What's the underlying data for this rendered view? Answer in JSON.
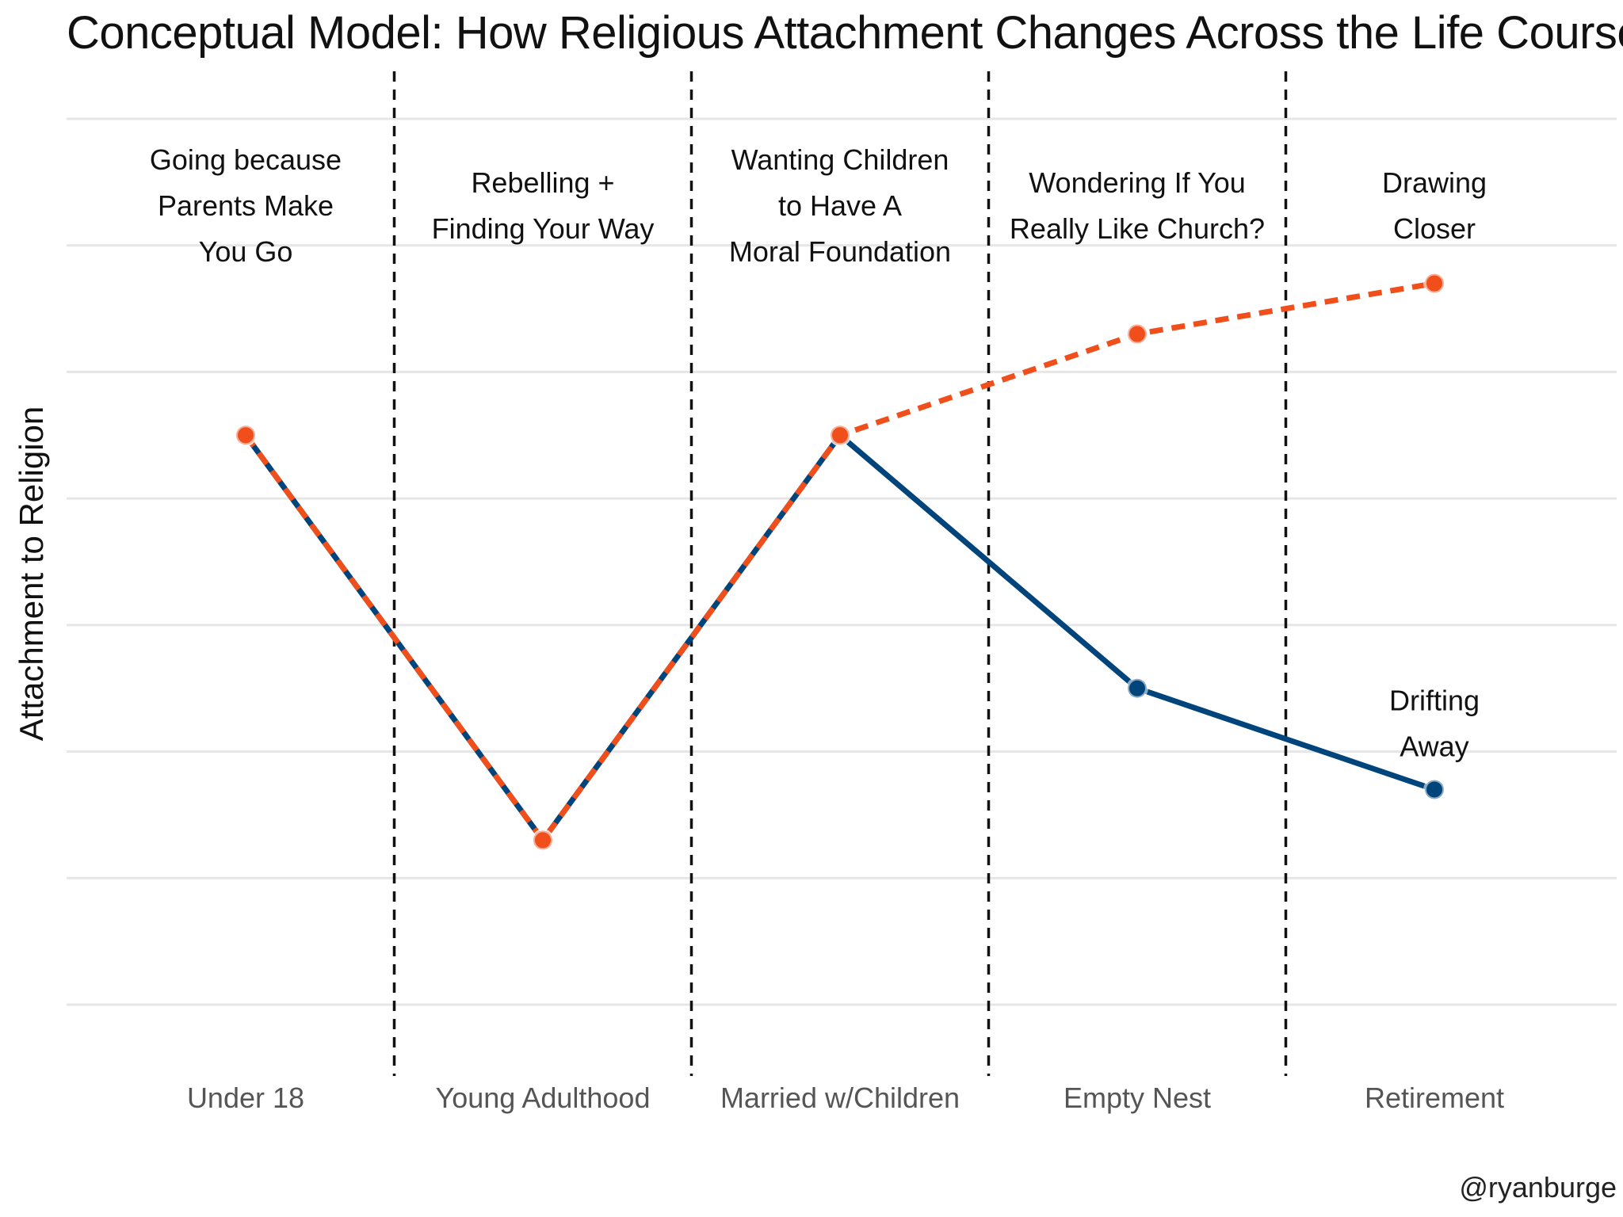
{
  "chart_data": {
    "type": "line",
    "title": "Conceptual Model: How Religious Attachment Changes Across the Life Course",
    "xlabel": "",
    "ylabel": "Attachment to Religion",
    "categories": [
      "Under 18",
      "Young Adulthood",
      "Married w/Children",
      "Empty Nest",
      "Retirement"
    ],
    "ylim": [
      0,
      7
    ],
    "grid": true,
    "series": [
      {
        "name": "Drawing Closer",
        "color": "#F04E1A",
        "style": "dashed",
        "values": [
          4.5,
          1.3,
          4.5,
          5.3,
          5.7
        ]
      },
      {
        "name": "Drifting Away",
        "color": "#00447C",
        "style": "solid",
        "values": [
          4.5,
          1.3,
          4.5,
          2.5,
          1.7
        ]
      }
    ],
    "stage_annotations": [
      {
        "lines": [
          "Going because",
          "Parents Make",
          "You Go"
        ]
      },
      {
        "lines": [
          "Rebelling +",
          "Finding Your Way"
        ]
      },
      {
        "lines": [
          "Wanting Children",
          "to Have A",
          "Moral Foundation"
        ]
      },
      {
        "lines": [
          "Wondering If You",
          "Really Like Church?"
        ]
      },
      {
        "lines": [
          "Drawing",
          "Closer"
        ]
      }
    ],
    "end_annotation": {
      "lines": [
        "Drifting",
        "Away"
      ]
    }
  },
  "credit": "@ryanburge"
}
